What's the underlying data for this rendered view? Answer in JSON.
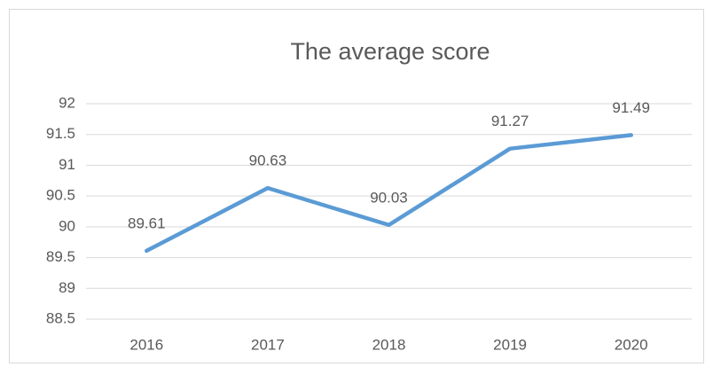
{
  "chart_data": {
    "type": "line",
    "title": "The average score",
    "categories": [
      "2016",
      "2017",
      "2018",
      "2019",
      "2020"
    ],
    "values": [
      89.61,
      90.63,
      90.03,
      91.27,
      91.49
    ],
    "color": "#5b9bd5",
    "ylim": [
      88.5,
      92
    ],
    "yticks": [
      88.5,
      89,
      89.5,
      90,
      90.5,
      91,
      91.5,
      92
    ],
    "grid": true
  }
}
